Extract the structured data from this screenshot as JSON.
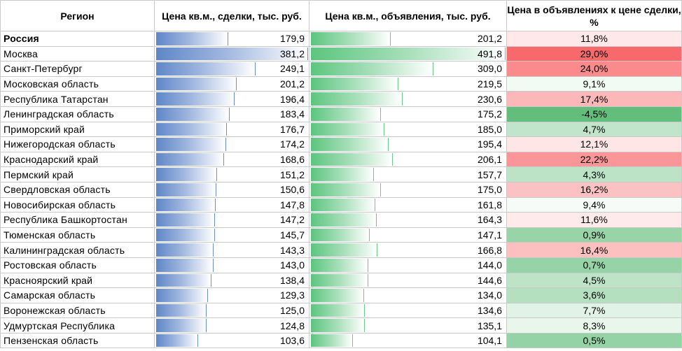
{
  "headers": {
    "region": "Регион",
    "deal_price": "Цена кв.м., сделки, тыс. руб.",
    "listing_price": "Цена кв.м., объявления, тыс. руб.",
    "ratio": "Цена в объявлениях к цене сделки, %"
  },
  "colors": {
    "bar_blue": "#5f86c8",
    "bar_green": "#5cc57f",
    "ratio_high": "#f8696b",
    "ratio_low": "#63be7b"
  },
  "rows": [
    {
      "region": "Россия",
      "deal": "179,9",
      "listing": "201,2",
      "ratio": "11,8%",
      "bold": true
    },
    {
      "region": "Москва",
      "deal": "381,2",
      "listing": "491,8",
      "ratio": "29,0%"
    },
    {
      "region": "Санкт-Петербург",
      "deal": "249,1",
      "listing": "309,0",
      "ratio": "24,0%"
    },
    {
      "region": "Московская область",
      "deal": "201,2",
      "listing": "219,5",
      "ratio": "9,1%"
    },
    {
      "region": "Республика Татарстан",
      "deal": "196,4",
      "listing": "230,6",
      "ratio": "17,4%"
    },
    {
      "region": "Ленинградская область",
      "deal": "183,4",
      "listing": "175,2",
      "ratio": "-4,5%"
    },
    {
      "region": "Приморский край",
      "deal": "176,7",
      "listing": "185,0",
      "ratio": "4,7%"
    },
    {
      "region": "Нижегородская область",
      "deal": "174,2",
      "listing": "195,4",
      "ratio": "12,1%"
    },
    {
      "region": "Краснодарский край",
      "deal": "168,6",
      "listing": "206,1",
      "ratio": "22,2%"
    },
    {
      "region": "Пермский край",
      "deal": "151,2",
      "listing": "157,7",
      "ratio": "4,3%"
    },
    {
      "region": "Свердловская область",
      "deal": "150,6",
      "listing": "175,0",
      "ratio": "16,2%"
    },
    {
      "region": "Новосибирская область",
      "deal": "147,8",
      "listing": "161,8",
      "ratio": "9,4%"
    },
    {
      "region": "Республика Башкортостан",
      "deal": "147,2",
      "listing": "164,3",
      "ratio": "11,6%"
    },
    {
      "region": "Тюменская область",
      "deal": "145,7",
      "listing": "147,1",
      "ratio": "0,9%"
    },
    {
      "region": "Калининградская область",
      "deal": "143,3",
      "listing": "166,8",
      "ratio": "16,4%"
    },
    {
      "region": "Ростовская область",
      "deal": "143,0",
      "listing": "144,0",
      "ratio": "0,7%"
    },
    {
      "region": "Красноярский край",
      "deal": "138,4",
      "listing": "144,6",
      "ratio": "4,5%"
    },
    {
      "region": "Самарская область",
      "deal": "129,3",
      "listing": "134,0",
      "ratio": "3,6%"
    },
    {
      "region": "Воронежская область",
      "deal": "125,0",
      "listing": "134,6",
      "ratio": "7,7%"
    },
    {
      "region": "Удмуртская Республика",
      "deal": "124,8",
      "listing": "135,1",
      "ratio": "8,3%"
    },
    {
      "region": "Пензенская область",
      "deal": "103,6",
      "listing": "104,1",
      "ratio": "0,5%"
    }
  ]
}
